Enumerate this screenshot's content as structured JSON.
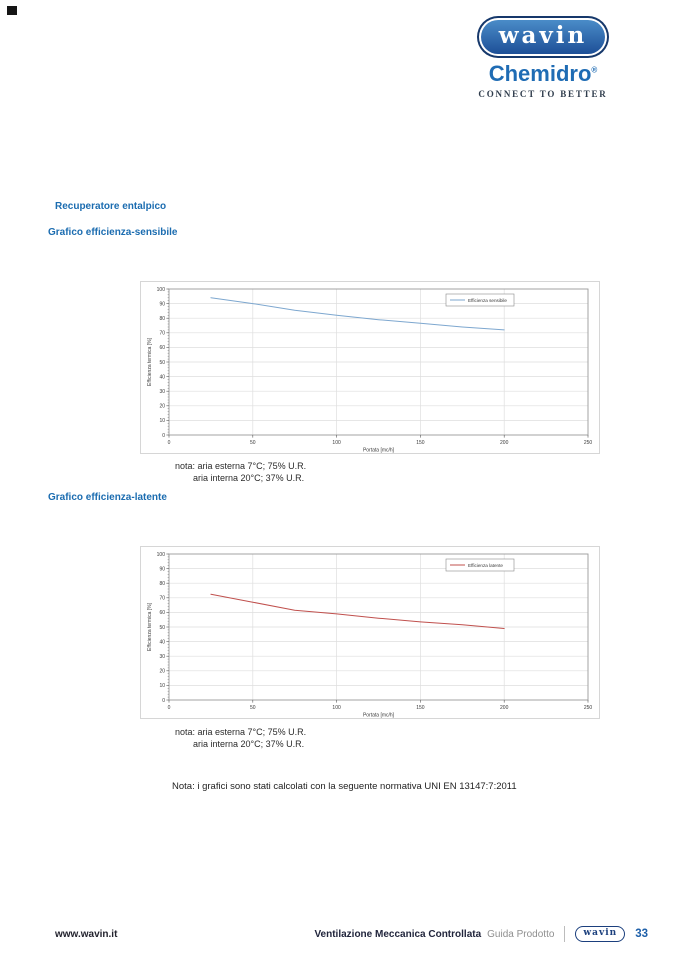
{
  "header": {
    "logo_primary": "wavin",
    "logo_secondary": "Chemidro",
    "logo_registered": "®",
    "tagline": "CONNECT TO BETTER"
  },
  "sections": {
    "main_title": "Recuperatore entalpico",
    "chart1_title": "Grafico efficienza-sensibile",
    "chart2_title": "Grafico efficienza-latente",
    "note_line1": "nota: aria esterna 7°C; 75% U.R.",
    "note_line2": "aria interna 20°C; 37% U.R.",
    "bottom_note": "Nota: i grafici sono stati calcolati con la seguente normativa UNI EN 13147:7:2011"
  },
  "footer": {
    "website": "www.wavin.it",
    "doc_title": "Ventilazione Meccanica Controllata",
    "doc_subtitle": "Guida Prodotto",
    "logo": "wavin",
    "page_number": "33"
  },
  "colors": {
    "title_blue": "#1b6cb0",
    "sensible_line": "#7da7cf",
    "latente_line": "#c0504d",
    "grid": "#dedede",
    "plot_border": "#9a9a9a",
    "page_number_blue": "#1d5fa9"
  },
  "chart_data": [
    {
      "type": "line",
      "title": "Grafico efficienza-sensibile",
      "x": [
        25,
        50,
        75,
        100,
        125,
        150,
        175,
        200
      ],
      "series": [
        {
          "name": "Efficienza sensibile",
          "color": "#7da7cf",
          "values": [
            94,
            90,
            85.5,
            82,
            79,
            76.5,
            74,
            72
          ]
        }
      ],
      "xlabel": "Portata [mc/h]",
      "ylabel": "Efficienza termica [%]",
      "xlim": [
        0,
        250
      ],
      "ylim": [
        0,
        100
      ],
      "x_ticks": [
        0,
        50,
        100,
        150,
        200,
        250
      ],
      "y_tick_step": 10,
      "y_minor_step": 2,
      "grid": true,
      "legend_position": "top-right-inside"
    },
    {
      "type": "line",
      "title": "Grafico efficienza-latente",
      "x": [
        25,
        50,
        75,
        100,
        125,
        150,
        175,
        200
      ],
      "series": [
        {
          "name": "Efficienza latente",
          "color": "#c0504d",
          "values": [
            72.5,
            67,
            61.5,
            59,
            56,
            53.5,
            51.5,
            49
          ]
        }
      ],
      "xlabel": "Portata [mc/h]",
      "ylabel": "Efficienza termica [%]",
      "xlim": [
        0,
        250
      ],
      "ylim": [
        0,
        100
      ],
      "x_ticks": [
        0,
        50,
        100,
        150,
        200,
        250
      ],
      "y_tick_step": 10,
      "y_minor_step": 2,
      "grid": true,
      "legend_position": "top-right-inside"
    }
  ]
}
